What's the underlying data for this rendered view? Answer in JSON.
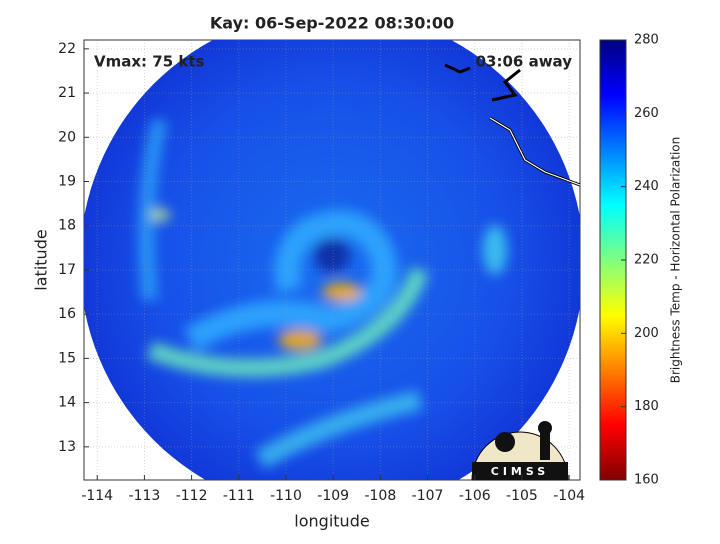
{
  "chart_data": {
    "type": "image",
    "title": "Kay: 06-Sep-2022 08:30:00",
    "annotations": [
      "Vmax: 75 kts",
      "03:06 away"
    ],
    "xlabel": "longitude",
    "ylabel": "latitude",
    "xlim": [
      -114.28,
      -103.77
    ],
    "xticks": [
      -114,
      -113,
      -112,
      -111,
      -110,
      -109,
      -108,
      -107,
      -106,
      -105,
      -104
    ],
    "ylim": [
      12.25,
      22.2
    ],
    "yticks": [
      13,
      14,
      15,
      16,
      17,
      18,
      19,
      20,
      21,
      22
    ],
    "grid": true,
    "colorbar": {
      "label": "Brightness Temp - Horizontal Polarization",
      "clim": [
        160,
        280
      ],
      "ticks": [
        160,
        180,
        200,
        220,
        240,
        260,
        280
      ]
    },
    "logo": "CIMSS"
  }
}
